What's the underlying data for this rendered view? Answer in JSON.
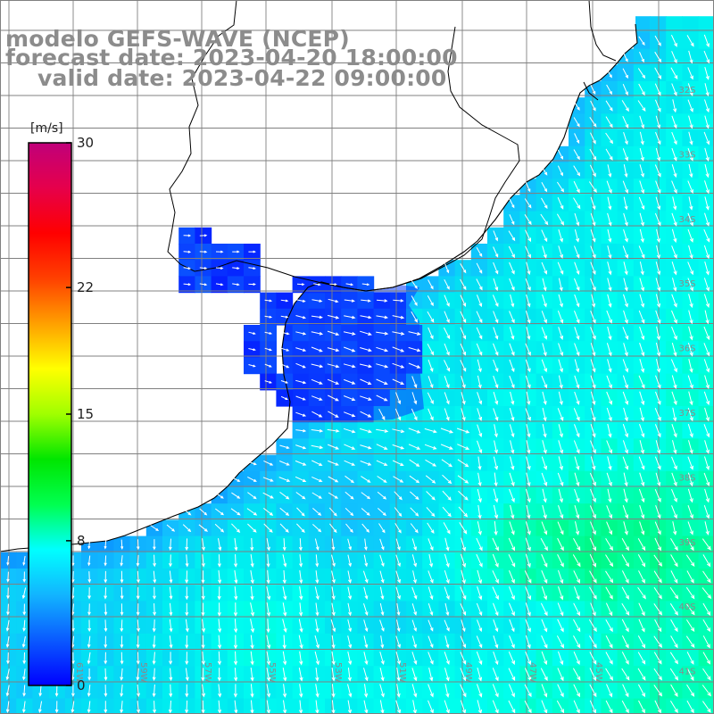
{
  "title": {
    "line1": "modelo GEFS-WAVE (NCEP)",
    "line2": "forecast date: 2023-04-20 18:00:00",
    "line3": "valid date: 2023-04-22 09:00:00"
  },
  "colorbar": {
    "unit": "[m/s]",
    "ticks": [
      {
        "label": "30",
        "value": 30
      },
      {
        "label": "22",
        "value": 22
      },
      {
        "label": "15",
        "value": 15
      },
      {
        "label": "8",
        "value": 8
      },
      {
        "label": "0",
        "value": 0
      }
    ],
    "range": [
      0,
      30
    ],
    "colors": [
      "#0000ff",
      "#0a5aff",
      "#12b4ff",
      "#00ffff",
      "#00ff50",
      "#00e600",
      "#a0ff00",
      "#ffff00",
      "#ffa000",
      "#ff4000",
      "#ff0000",
      "#e6004b",
      "#c0007a"
    ]
  },
  "map": {
    "land_color": "#ffffff",
    "coast_color": "#000000",
    "grid_color": "#808080",
    "arrow_color": "#ffffff",
    "lon_labels": [
      "61W",
      "59W",
      "57W",
      "55W",
      "53W",
      "51W",
      "49W",
      "47W",
      "45W"
    ],
    "lat_labels": [
      "32S",
      "33S",
      "34S",
      "35S",
      "36S",
      "37S",
      "38S",
      "39S",
      "40S",
      "41S"
    ]
  }
}
